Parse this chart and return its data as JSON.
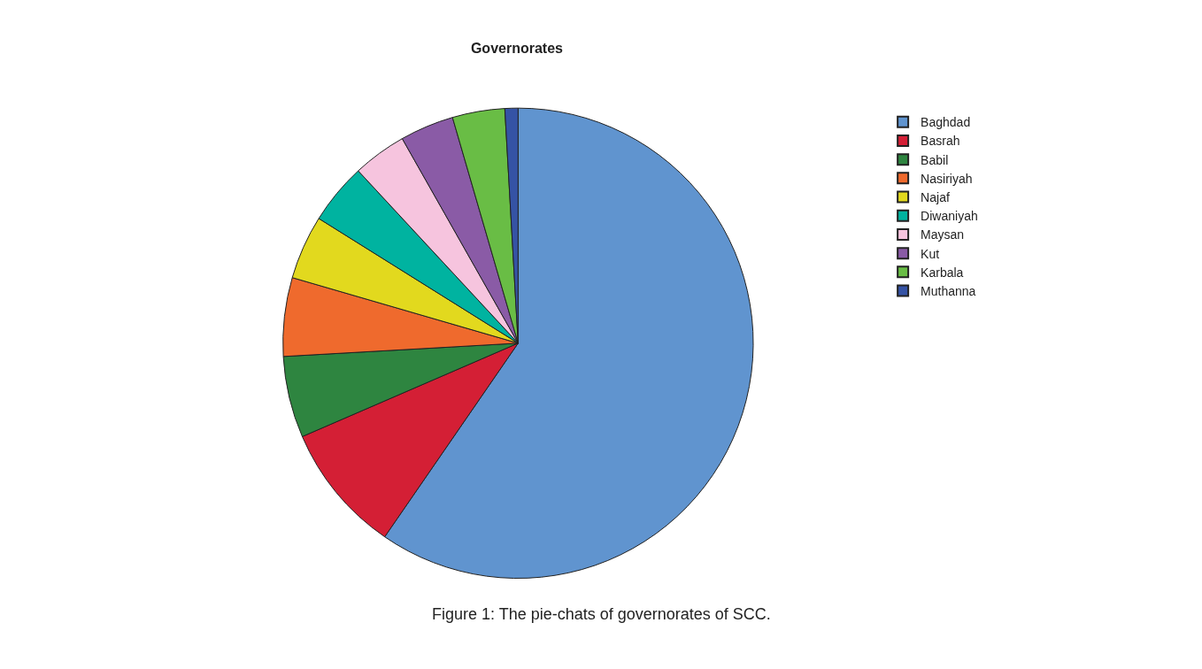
{
  "chart_data": {
    "type": "pie",
    "title": "Governorates",
    "categories": [
      "Baghdad",
      "Basrah",
      "Babil",
      "Nasiriyah",
      "Najaf",
      "Diwaniyah",
      "Maysan",
      "Kut",
      "Karbala",
      "Muthanna"
    ],
    "values": [
      59.6,
      8.9,
      5.6,
      5.4,
      4.4,
      4.2,
      3.7,
      3.7,
      3.6,
      0.9
    ],
    "colors": [
      "#6094cf",
      "#d41f35",
      "#2e8540",
      "#ef6a2d",
      "#e2d91e",
      "#00b3a0",
      "#f6c4de",
      "#8a5ba6",
      "#69bd45",
      "#3553a5"
    ],
    "legend": "top right",
    "annotations": [
      "Figure 1: The pie-chats of governorates of SCC."
    ]
  }
}
